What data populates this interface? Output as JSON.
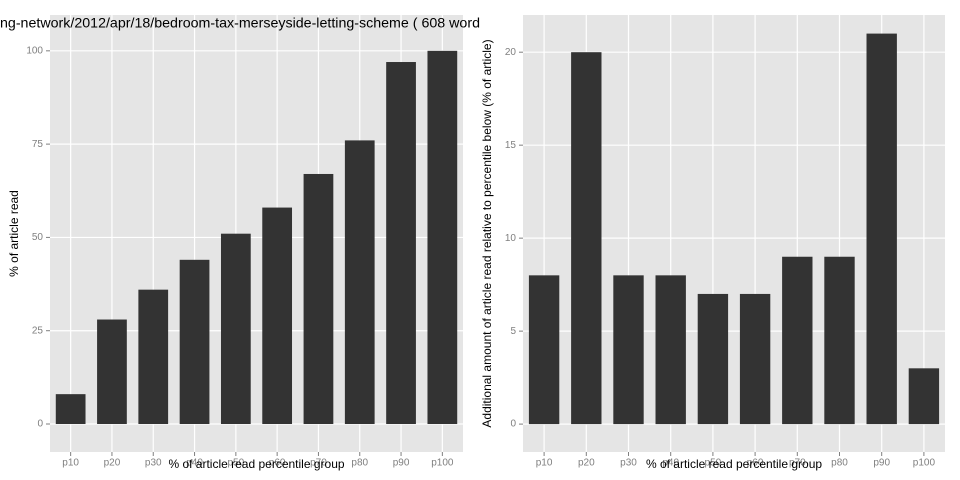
{
  "chart_data": [
    {
      "type": "bar",
      "title": "ng-network/2012/apr/18/bedroom-tax-merseyside-letting-scheme ( 608 word",
      "x_label": "% of article read percentile group",
      "y_label": "% of article read",
      "categories": [
        "p10",
        "p20",
        "p30",
        "p40",
        "p50",
        "p60",
        "p70",
        "p80",
        "p90",
        "p100"
      ],
      "values": [
        8,
        28,
        36,
        44,
        51,
        58,
        67,
        76,
        97,
        100
      ],
      "color": "#333333",
      "ylim": [
        -7.5,
        109.6
      ],
      "yticks": [
        0,
        25,
        50,
        75,
        100
      ],
      "grid": true
    },
    {
      "type": "bar",
      "x_label": "% of article read percentile group",
      "y_label": "Additional amount of article read relative to percentile below (% of article)",
      "categories": [
        "p10",
        "p20",
        "p30",
        "p40",
        "p50",
        "p60",
        "p70",
        "p80",
        "p90",
        "p100"
      ],
      "values": [
        8,
        20,
        8,
        8,
        7,
        7,
        9,
        9,
        21,
        3
      ],
      "color": "#333333",
      "ylim": [
        -1.5,
        22
      ],
      "yticks": [
        0,
        5,
        10,
        15,
        20
      ],
      "grid": true
    }
  ]
}
